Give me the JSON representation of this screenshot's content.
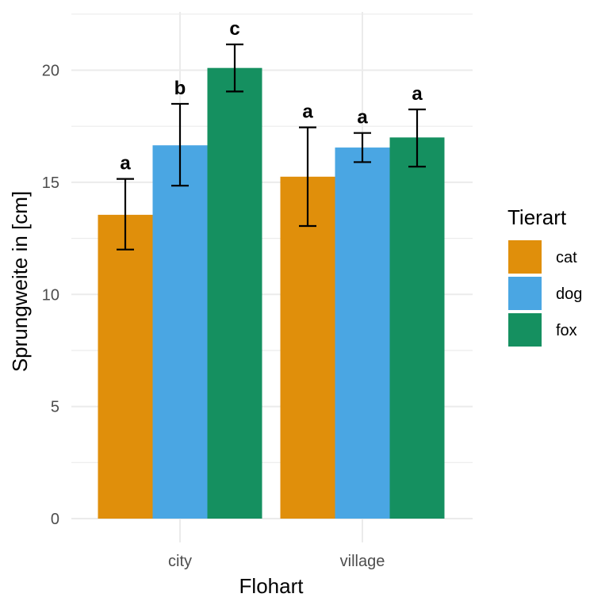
{
  "chart_data": {
    "type": "bar",
    "xlabel": "Flohart",
    "ylabel": "Sprungweite in [cm]",
    "categories": [
      "city",
      "village"
    ],
    "ylim": [
      0,
      22.6
    ],
    "yticks": [
      0,
      5,
      10,
      15,
      20
    ],
    "grid": true,
    "legend": {
      "title": "Tierart",
      "position": "right"
    },
    "series": [
      {
        "name": "cat",
        "color": "#E08F0B",
        "values": [
          13.55,
          15.25
        ],
        "error_low": [
          12.0,
          13.05
        ],
        "error_high": [
          15.15,
          17.45
        ],
        "letters": [
          "a",
          "a"
        ]
      },
      {
        "name": "dog",
        "color": "#4AA6E3",
        "values": [
          16.65,
          16.55
        ],
        "error_low": [
          14.85,
          15.9
        ],
        "error_high": [
          18.5,
          17.2
        ],
        "letters": [
          "b",
          "a"
        ]
      },
      {
        "name": "fox",
        "color": "#159060",
        "values": [
          20.1,
          17.0
        ],
        "error_low": [
          19.05,
          15.7
        ],
        "error_high": [
          21.15,
          18.25
        ],
        "letters": [
          "c",
          "a"
        ]
      }
    ]
  }
}
